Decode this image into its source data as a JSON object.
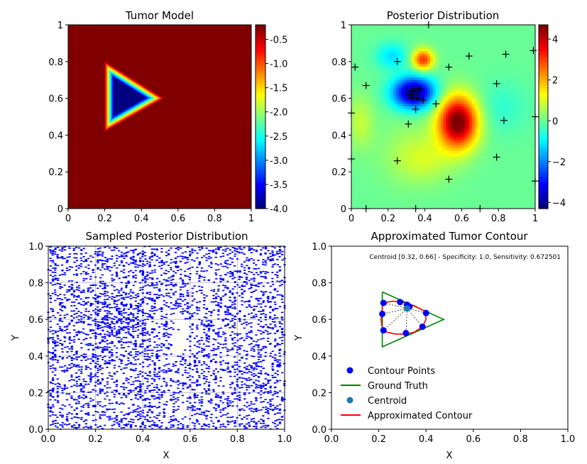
{
  "chart_data": [
    {
      "type": "heatmap",
      "title": "Tumor Model",
      "xlabel": "",
      "ylabel": "",
      "xlim": [
        0,
        1
      ],
      "ylim": [
        0,
        1
      ],
      "xticks": [
        "0",
        "0.2",
        "0.4",
        "0.6",
        "0.8",
        "1"
      ],
      "yticks": [
        "0",
        "0.2",
        "0.4",
        "0.6",
        "0.8",
        "1"
      ],
      "colormap": "jet",
      "colorbar": {
        "min": -4.0,
        "max": -0.2,
        "ticks": [
          "-0.5",
          "-1.0",
          "-1.5",
          "-2.0",
          "-2.5",
          "-3.0",
          "-3.5",
          "-4.0"
        ]
      },
      "background_value": -0.2,
      "triangle_vertices": [
        [
          0.2,
          0.8
        ],
        [
          0.2,
          0.42
        ],
        [
          0.52,
          0.6
        ]
      ],
      "inside_value": -4.0
    },
    {
      "type": "heatmap",
      "title": "Posterior Distribution",
      "xlabel": "",
      "ylabel": "",
      "xlim": [
        0,
        1
      ],
      "ylim": [
        0,
        1
      ],
      "xticks": [
        "0",
        "0.2",
        "0.4",
        "0.6",
        "0.8",
        "1"
      ],
      "yticks": [
        "0",
        "0.2",
        "0.4",
        "0.6",
        "0.8",
        "1"
      ],
      "colormap": "jet",
      "colorbar": {
        "min": -4.3,
        "max": 4.7,
        "ticks": [
          "4",
          "2",
          "0",
          "−2",
          "−4"
        ]
      },
      "blobs": [
        {
          "x": 0.58,
          "y": 0.47,
          "sx": 0.075,
          "sy": 0.1,
          "amp": 5.0
        },
        {
          "x": 0.34,
          "y": 0.63,
          "sx": 0.08,
          "sy": 0.06,
          "amp": -4.4
        },
        {
          "x": 0.39,
          "y": 0.81,
          "sx": 0.04,
          "sy": 0.04,
          "amp": 3.2
        },
        {
          "x": 0.22,
          "y": 0.83,
          "sx": 0.06,
          "sy": 0.05,
          "amp": -1.2
        },
        {
          "x": 0.33,
          "y": 0.3,
          "sx": 0.12,
          "sy": 0.12,
          "amp": 0.6
        },
        {
          "x": 0.82,
          "y": 0.55,
          "sx": 0.1,
          "sy": 0.1,
          "amp": -0.5
        },
        {
          "x": 0.05,
          "y": 0.47,
          "sx": 0.05,
          "sy": 0.1,
          "amp": 0.8
        },
        {
          "x": 0.42,
          "y": 0.26,
          "sx": 0.1,
          "sy": 0.08,
          "amp": 0.5
        }
      ],
      "sample_points": [
        [
          0.02,
          0.77
        ],
        [
          0.08,
          0.67
        ],
        [
          0.25,
          0.8
        ],
        [
          0.42,
          1.0
        ],
        [
          0.53,
          0.77
        ],
        [
          0.64,
          0.83
        ],
        [
          0.84,
          0.84
        ],
        [
          0.99,
          0.86
        ],
        [
          0.79,
          0.68
        ],
        [
          0.32,
          0.62
        ],
        [
          0.34,
          0.64
        ],
        [
          0.37,
          0.65
        ],
        [
          0.33,
          0.6
        ],
        [
          0.36,
          0.6
        ],
        [
          0.39,
          0.59
        ],
        [
          0.35,
          0.54
        ],
        [
          0.46,
          0.57
        ],
        [
          0.31,
          0.46
        ],
        [
          0.83,
          0.48
        ],
        [
          0.0,
          0.52
        ],
        [
          0.25,
          0.26
        ],
        [
          0.53,
          0.16
        ],
        [
          0.79,
          0.28
        ],
        [
          0.0,
          0.27
        ],
        [
          1.0,
          0.5
        ],
        [
          1.0,
          0.15
        ],
        [
          0.08,
          0.0
        ],
        [
          0.35,
          0.0
        ],
        [
          0.7,
          0.0
        ]
      ]
    },
    {
      "type": "scatter",
      "title": "Sampled Posterior Distribution",
      "xlabel": "X",
      "ylabel": "Y",
      "xlim": [
        0,
        1
      ],
      "ylim": [
        0,
        1
      ],
      "xticks": [
        "0.0",
        "0.2",
        "0.4",
        "0.6",
        "0.8",
        "1.0"
      ],
      "yticks": [
        "0.0",
        "0.2",
        "0.4",
        "0.6",
        "0.8",
        "1.0"
      ],
      "grid": true,
      "point_color": "#0000ff",
      "approx_point_count": 9000,
      "dense_region": {
        "x": [
          0.2,
          0.45
        ],
        "y": [
          0.5,
          0.75
        ]
      },
      "sparse_region": {
        "x": [
          0.53,
          0.6
        ],
        "y": [
          0.4,
          0.6
        ]
      }
    },
    {
      "type": "line",
      "title": "Approximated Tumor Contour",
      "xlabel": "X",
      "ylabel": "Y",
      "xlim": [
        0,
        1
      ],
      "ylim": [
        0,
        1
      ],
      "xticks": [
        "0.0",
        "0.2",
        "0.4",
        "0.6",
        "0.8",
        "1.0"
      ],
      "yticks": [
        "0.0",
        "0.2",
        "0.4",
        "0.6",
        "0.8",
        "1.0"
      ],
      "annotation": "Centroid [0.32, 0.66] - Specificity: 1.0, Sensitivity: 0.672501",
      "ground_truth": [
        [
          0.215,
          0.75
        ],
        [
          0.215,
          0.45
        ],
        [
          0.475,
          0.6
        ],
        [
          0.215,
          0.75
        ]
      ],
      "contour_points": [
        [
          0.22,
          0.69
        ],
        [
          0.29,
          0.695
        ],
        [
          0.32,
          0.68
        ],
        [
          0.33,
          0.67
        ],
        [
          0.4,
          0.635
        ],
        [
          0.385,
          0.56
        ],
        [
          0.315,
          0.525
        ],
        [
          0.22,
          0.54
        ],
        [
          0.215,
          0.63
        ]
      ],
      "centroid": [
        0.32,
        0.66
      ],
      "approx_contour": [
        [
          0.215,
          0.69
        ],
        [
          0.26,
          0.7
        ],
        [
          0.3,
          0.695
        ],
        [
          0.35,
          0.675
        ],
        [
          0.395,
          0.645
        ],
        [
          0.4,
          0.6
        ],
        [
          0.385,
          0.56
        ],
        [
          0.35,
          0.53
        ],
        [
          0.315,
          0.52
        ],
        [
          0.27,
          0.52
        ],
        [
          0.235,
          0.53
        ],
        [
          0.215,
          0.55
        ],
        [
          0.21,
          0.6
        ],
        [
          0.215,
          0.66
        ],
        [
          0.215,
          0.69
        ]
      ],
      "legend_position": "lower-left",
      "legend": [
        "Contour Points",
        "Ground Truth",
        "Centroid",
        "Approximated Contour"
      ],
      "colors": {
        "contour_points": "#0000ff",
        "ground_truth": "#008000",
        "centroid": "#1f77b4",
        "approx_contour": "#ff0000"
      }
    }
  ]
}
